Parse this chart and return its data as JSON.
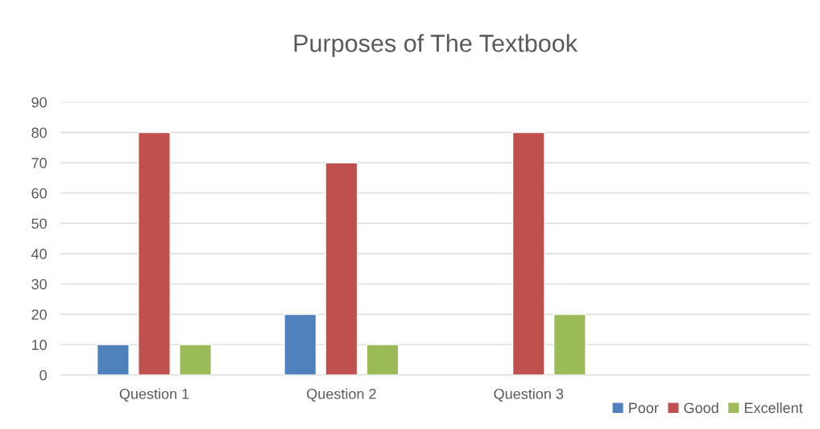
{
  "chart_data": {
    "type": "bar",
    "title": "Purposes of The Textbook",
    "categories": [
      "Question 1",
      "Question 2",
      "Question 3",
      null
    ],
    "series": [
      {
        "name": "Poor",
        "color": "#4f81bd",
        "values": [
          10,
          20,
          null,
          null
        ]
      },
      {
        "name": "Good",
        "color": "#c0504d",
        "values": [
          80,
          70,
          80,
          null
        ]
      },
      {
        "name": "Excellent",
        "color": "#9bbb59",
        "values": [
          10,
          10,
          20,
          null
        ]
      }
    ],
    "ylim": [
      0,
      90
    ],
    "yticks": [
      0,
      10,
      20,
      30,
      40,
      50,
      60,
      70,
      80,
      90
    ],
    "grid": "y",
    "legend": "bottom right"
  }
}
